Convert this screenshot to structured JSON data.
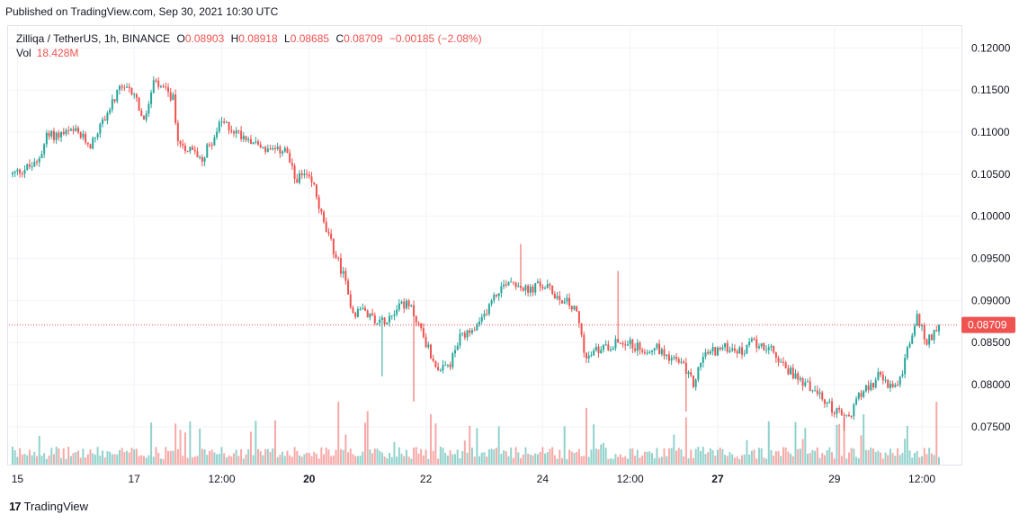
{
  "header": {
    "published": "Published on TradingView.com, Sep 30, 2021 10:30 UTC"
  },
  "legend": {
    "symbol": "Zilliqa / TetherUS, 1h, BINANCE",
    "open_label": "O",
    "open": "0.08903",
    "high_label": "H",
    "high": "0.08918",
    "low_label": "L",
    "low": "0.08685",
    "close_label": "C",
    "close": "0.08709",
    "change": "−0.00185 (−2.08%)",
    "vol_label": "Vol",
    "vol": "18.428M"
  },
  "last_price_tag": "0.08709",
  "footer": {
    "brand": "TradingView",
    "logo": "17"
  },
  "colors": {
    "up": "#26a69a",
    "down": "#ef5350",
    "grid": "#f0f3fa",
    "text": "#131722"
  },
  "chart_data": {
    "type": "candlestick",
    "ylim": [
      0.0705,
      0.1225
    ],
    "ytick_labels": [
      "0.12000",
      "0.11500",
      "0.11000",
      "0.10500",
      "0.10000",
      "0.09500",
      "0.09000",
      "0.08500",
      "0.08000",
      "0.07500"
    ],
    "yticks": [
      0.12,
      0.115,
      0.11,
      0.105,
      0.1,
      0.095,
      0.09,
      0.085,
      0.08,
      0.075
    ],
    "xtick_labels": [
      {
        "label": "15",
        "t": 2,
        "bold": false
      },
      {
        "label": "17",
        "t": 50,
        "bold": false
      },
      {
        "label": "12:00",
        "t": 86,
        "bold": false
      },
      {
        "label": "20",
        "t": 122,
        "bold": true
      },
      {
        "label": "22",
        "t": 170,
        "bold": false
      },
      {
        "label": "24",
        "t": 218,
        "bold": false
      },
      {
        "label": "12:00",
        "t": 254,
        "bold": false
      },
      {
        "label": "27",
        "t": 290,
        "bold": true
      },
      {
        "label": "29",
        "t": 338,
        "bold": false
      },
      {
        "label": "12:00",
        "t": 374,
        "bold": false
      }
    ],
    "t_range": [
      0,
      381
    ],
    "price_anchors": [
      [
        0,
        0.105
      ],
      [
        6,
        0.1058
      ],
      [
        10,
        0.1062
      ],
      [
        14,
        0.1095
      ],
      [
        20,
        0.1098
      ],
      [
        26,
        0.11
      ],
      [
        32,
        0.1085
      ],
      [
        38,
        0.1118
      ],
      [
        44,
        0.115
      ],
      [
        50,
        0.1148
      ],
      [
        54,
        0.111
      ],
      [
        58,
        0.1158
      ],
      [
        62,
        0.115
      ],
      [
        66,
        0.114
      ],
      [
        68,
        0.109
      ],
      [
        72,
        0.108
      ],
      [
        78,
        0.107
      ],
      [
        82,
        0.109
      ],
      [
        86,
        0.1112
      ],
      [
        92,
        0.11
      ],
      [
        98,
        0.1092
      ],
      [
        104,
        0.108
      ],
      [
        108,
        0.1075
      ],
      [
        112,
        0.1082
      ],
      [
        116,
        0.1045
      ],
      [
        120,
        0.1048
      ],
      [
        124,
        0.1035
      ],
      [
        128,
        0.099
      ],
      [
        132,
        0.096
      ],
      [
        136,
        0.093
      ],
      [
        140,
        0.0885
      ],
      [
        144,
        0.089
      ],
      [
        148,
        0.088
      ],
      [
        152,
        0.0875
      ],
      [
        156,
        0.0885
      ],
      [
        160,
        0.0898
      ],
      [
        164,
        0.089
      ],
      [
        168,
        0.0865
      ],
      [
        172,
        0.0835
      ],
      [
        176,
        0.0815
      ],
      [
        180,
        0.0825
      ],
      [
        184,
        0.0855
      ],
      [
        188,
        0.086
      ],
      [
        192,
        0.087
      ],
      [
        196,
        0.0895
      ],
      [
        200,
        0.0912
      ],
      [
        204,
        0.0925
      ],
      [
        208,
        0.092
      ],
      [
        212,
        0.091
      ],
      [
        216,
        0.0918
      ],
      [
        220,
        0.0915
      ],
      [
        224,
        0.0905
      ],
      [
        228,
        0.0898
      ],
      [
        232,
        0.0885
      ],
      [
        236,
        0.083
      ],
      [
        240,
        0.084
      ],
      [
        244,
        0.0845
      ],
      [
        248,
        0.085
      ],
      [
        252,
        0.0852
      ],
      [
        256,
        0.0845
      ],
      [
        260,
        0.0842
      ],
      [
        264,
        0.0845
      ],
      [
        268,
        0.0838
      ],
      [
        272,
        0.083
      ],
      [
        276,
        0.0822
      ],
      [
        280,
        0.08
      ],
      [
        284,
        0.0835
      ],
      [
        288,
        0.084
      ],
      [
        292,
        0.0843
      ],
      [
        296,
        0.0845
      ],
      [
        300,
        0.0838
      ],
      [
        304,
        0.085
      ],
      [
        308,
        0.0848
      ],
      [
        312,
        0.084
      ],
      [
        316,
        0.0825
      ],
      [
        320,
        0.0815
      ],
      [
        324,
        0.0805
      ],
      [
        328,
        0.0798
      ],
      [
        332,
        0.0785
      ],
      [
        336,
        0.0775
      ],
      [
        340,
        0.0765
      ],
      [
        344,
        0.076
      ],
      [
        348,
        0.079
      ],
      [
        352,
        0.0795
      ],
      [
        356,
        0.081
      ],
      [
        360,
        0.08
      ],
      [
        364,
        0.0795
      ],
      [
        368,
        0.084
      ],
      [
        372,
        0.088
      ],
      [
        376,
        0.085
      ],
      [
        381,
        0.08709
      ]
    ],
    "spikes": [
      {
        "t": 209,
        "high": 0.0967
      },
      {
        "t": 249,
        "high": 0.0935
      },
      {
        "t": 165,
        "low": 0.078
      },
      {
        "t": 152,
        "low": 0.081
      },
      {
        "t": 277,
        "low": 0.0768
      },
      {
        "t": 342,
        "low": 0.0745
      }
    ],
    "volume_spikes": [
      {
        "t": 134,
        "v": 1.0
      },
      {
        "t": 146,
        "v": 0.85
      },
      {
        "t": 172,
        "v": 0.8
      },
      {
        "t": 236,
        "v": 0.9
      },
      {
        "t": 277,
        "v": 0.75
      },
      {
        "t": 350,
        "v": 0.8
      },
      {
        "t": 380,
        "v": 1.0
      }
    ]
  }
}
